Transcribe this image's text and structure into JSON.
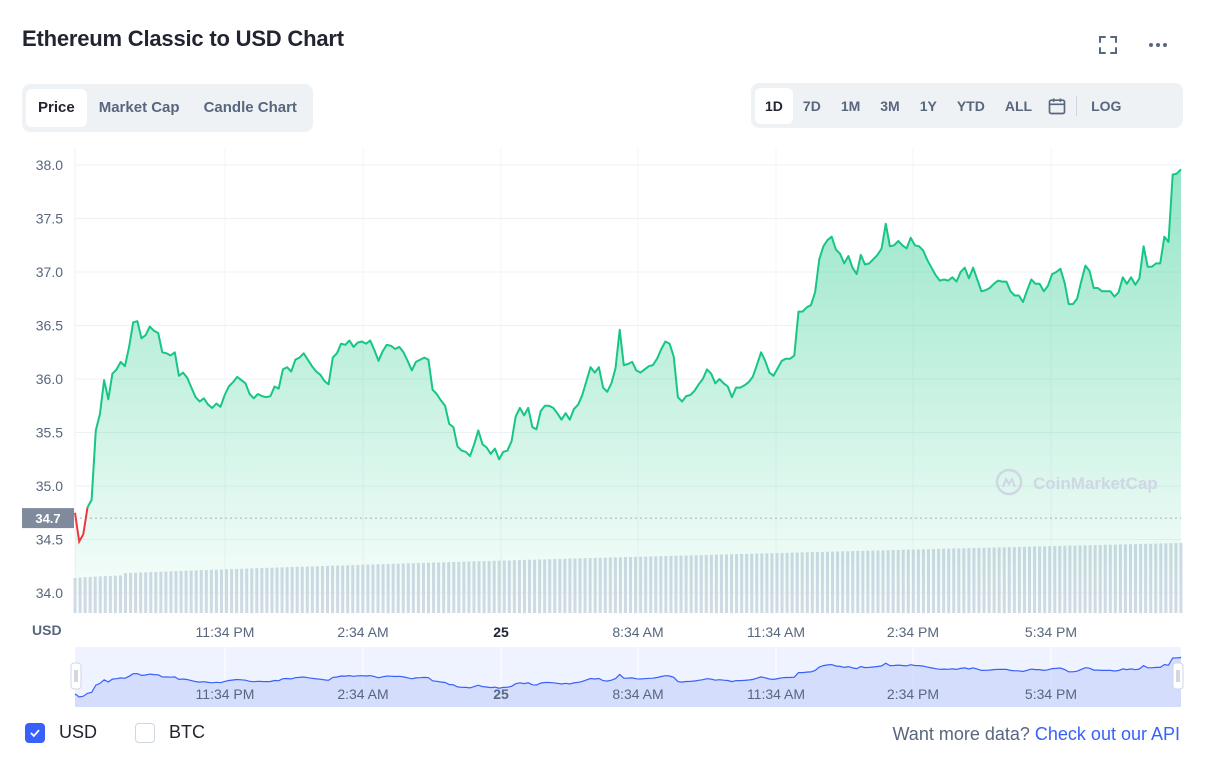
{
  "header": {
    "title": "Ethereum Classic to USD Chart",
    "icons": {
      "expand": "expand-icon",
      "more": "more-horizontal-icon"
    }
  },
  "chart_tabs": [
    {
      "label": "Price",
      "active": true
    },
    {
      "label": "Market Cap",
      "active": false
    },
    {
      "label": "Candle Chart",
      "active": false
    }
  ],
  "range_tabs": [
    {
      "label": "1D",
      "active": true
    },
    {
      "label": "7D",
      "active": false
    },
    {
      "label": "1M",
      "active": false
    },
    {
      "label": "3M",
      "active": false
    },
    {
      "label": "1Y",
      "active": false
    },
    {
      "label": "YTD",
      "active": false
    },
    {
      "label": "ALL",
      "active": false
    }
  ],
  "range_calendar_icon": "calendar-icon",
  "log_label": "LOG",
  "watermark": "CoinMarketCap",
  "footer": {
    "currencies": [
      {
        "label": "USD",
        "checked": true
      },
      {
        "label": "BTC",
        "checked": false
      }
    ],
    "api_prompt": "Want more data?",
    "api_link": "Check out our API"
  },
  "colors": {
    "up_line": "#16c784",
    "down_line": "#ea3943",
    "volume_bar": "#cfd6e4",
    "navigator_line": "#3861fb",
    "navigator_fill": "#e5ebff",
    "accent": "#3861fb"
  },
  "chart_data": {
    "type": "area",
    "title": "Ethereum Classic to USD Chart",
    "ylabel": "USD",
    "ylim": [
      33.9,
      38.1
    ],
    "y_ticks": [
      "38.0",
      "37.5",
      "37.0",
      "36.5",
      "36.0",
      "35.5",
      "35.0",
      "34.5",
      "34.0"
    ],
    "x_ticks": [
      "11:34 PM",
      "2:34 AM",
      "25",
      "8:34 AM",
      "11:34 AM",
      "2:34 PM",
      "5:34 PM"
    ],
    "open_price": 34.7,
    "open_price_label": "34.7",
    "grid": true,
    "series": [
      {
        "name": "Price",
        "values": [
          34.75,
          34.48,
          34.55,
          34.8,
          34.87,
          35.52,
          35.67,
          35.99,
          35.81,
          36.05,
          36.09,
          36.16,
          36.12,
          36.3,
          36.53,
          36.54,
          36.38,
          36.41,
          36.49,
          36.45,
          36.43,
          36.25,
          36.24,
          36.22,
          36.25,
          36.03,
          36.06,
          36.01,
          35.92,
          35.83,
          35.79,
          35.82,
          35.76,
          35.73,
          35.77,
          35.74,
          35.85,
          35.93,
          35.97,
          36.02,
          35.99,
          35.96,
          35.86,
          35.82,
          35.86,
          35.84,
          35.83,
          35.84,
          35.93,
          35.91,
          36.09,
          36.11,
          36.07,
          36.18,
          36.2,
          36.24,
          36.18,
          36.12,
          36.07,
          36.04,
          35.98,
          35.95,
          36.2,
          36.24,
          36.33,
          36.32,
          36.36,
          36.3,
          36.34,
          36.35,
          36.33,
          36.36,
          36.27,
          36.17,
          36.26,
          36.32,
          36.31,
          36.28,
          36.3,
          36.25,
          36.17,
          36.08,
          36.16,
          36.18,
          36.2,
          36.18,
          35.9,
          35.86,
          35.8,
          35.75,
          35.58,
          35.55,
          35.37,
          35.33,
          35.32,
          35.28,
          35.39,
          35.52,
          35.39,
          35.36,
          35.3,
          35.35,
          35.25,
          35.32,
          35.33,
          35.42,
          35.65,
          35.73,
          35.66,
          35.73,
          35.55,
          35.53,
          35.7,
          35.75,
          35.75,
          35.73,
          35.68,
          35.62,
          35.68,
          35.62,
          35.72,
          35.76,
          35.85,
          35.98,
          36.11,
          36.06,
          36.11,
          35.92,
          35.88,
          35.96,
          36.1,
          36.46,
          36.13,
          36.14,
          36.16,
          36.08,
          36.06,
          36.09,
          36.12,
          36.13,
          36.19,
          36.28,
          36.35,
          36.33,
          36.21,
          35.83,
          35.79,
          35.84,
          35.85,
          35.89,
          35.95,
          36.0,
          36.09,
          36.05,
          35.96,
          36.0,
          35.96,
          35.93,
          35.83,
          35.92,
          35.92,
          35.94,
          35.97,
          36.02,
          36.13,
          36.25,
          36.17,
          36.06,
          36.03,
          36.1,
          36.17,
          36.19,
          36.19,
          36.22,
          36.63,
          36.63,
          36.67,
          36.69,
          36.81,
          37.12,
          37.24,
          37.3,
          37.33,
          37.21,
          37.17,
          37.08,
          37.15,
          37.04,
          36.98,
          37.16,
          37.07,
          37.08,
          37.12,
          37.16,
          37.22,
          37.45,
          37.24,
          37.25,
          37.29,
          37.25,
          37.22,
          37.32,
          37.25,
          37.24,
          37.2,
          37.11,
          37.04,
          36.97,
          36.92,
          36.93,
          36.92,
          36.95,
          36.91,
          37.0,
          37.04,
          36.94,
          37.04,
          36.93,
          36.82,
          36.83,
          36.85,
          36.89,
          36.92,
          36.91,
          36.91,
          36.82,
          36.78,
          36.78,
          36.72,
          36.83,
          36.93,
          36.89,
          36.89,
          36.82,
          36.87,
          36.98,
          37.0,
          37.03,
          36.9,
          36.7,
          36.7,
          36.75,
          36.91,
          37.06,
          37.01,
          36.85,
          36.85,
          36.82,
          36.82,
          36.82,
          36.77,
          36.81,
          36.95,
          36.89,
          36.95,
          36.88,
          36.94,
          37.24,
          37.05,
          37.05,
          37.08,
          37.08,
          37.33,
          37.28,
          37.91,
          37.92,
          37.96
        ]
      }
    ]
  }
}
